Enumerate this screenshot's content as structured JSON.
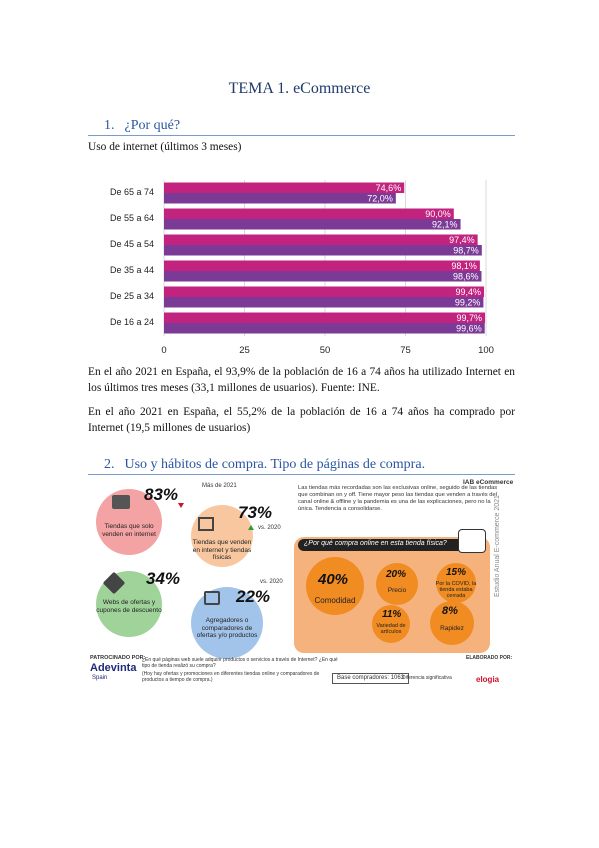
{
  "document": {
    "title": "TEMA 1. eCommerce",
    "section1": {
      "number": "1.",
      "heading": "¿Por qué?"
    },
    "chart_caption": "Uso de internet (últimos 3 meses)",
    "paragraph1": "En el año 2021 en España, el 93,9% de la población de 16 a 74 años ha utilizado Internet en los últimos tres meses (33,1 millones de usuarios). Fuente: INE.",
    "paragraph2": "En el año 2021 en España, el 55,2% de la población de 16 a 74 años ha comprado por Internet (19,5 millones de usuarios)",
    "section2": {
      "number": "2.",
      "heading": "Uso y hábitos de compra. Tipo de páginas de compra."
    }
  },
  "chart_data": {
    "type": "bar",
    "orientation": "horizontal",
    "categories": [
      "De 65 a 74",
      "De 55 a 64",
      "De 45 a 54",
      "De 35 a 44",
      "De 25 a 34",
      "De 16 a 24"
    ],
    "series": [
      {
        "values": [
          74.6,
          90.0,
          97.4,
          98.1,
          99.4,
          99.7
        ],
        "labels": [
          "74,6%",
          "90,0%",
          "97,4%",
          "98,1%",
          "99,4%",
          "99,7%"
        ],
        "color": "#c2237f"
      },
      {
        "values": [
          72.0,
          92.1,
          98.7,
          98.6,
          99.2,
          99.6
        ],
        "labels": [
          "72,0%",
          "92,1%",
          "98,7%",
          "98,6%",
          "99,2%",
          "99,6%"
        ],
        "color": "#7b3a96"
      }
    ],
    "xticks": [
      "0",
      "25",
      "50",
      "75",
      "100"
    ],
    "xlim": [
      0,
      100
    ],
    "grid": true
  },
  "infographic": {
    "brand": "IAB eCommerce",
    "side_text": "Estudio Anual E-commerce 2021",
    "intro": "Las tiendas más recordadas son las exclusivas online, seguido de las tiendas que combinan on y off. Tiene mayor peso las tiendas que venden a través del canal online & offline y la pandemia es una de las explicaciones, pero no la única. Tendencia a consolidarse.",
    "items": [
      {
        "pct": "83%",
        "label": "Tiendas que solo venden en internet",
        "note": "Más de 2021"
      },
      {
        "pct": "73%",
        "label": "Tiendas que venden en internet y tiendas físicas",
        "note": "vs. 2020"
      },
      {
        "pct": "34%",
        "label": "Webs de ofertas y cupones de descuento"
      },
      {
        "pct": "22%",
        "label": "Agregadores o comparadores de ofertas y/o productos",
        "note": "vs. 2020"
      }
    ],
    "reasons_title": "¿Por qué compra online en esta tienda física?",
    "reasons": [
      {
        "pct": "40%",
        "label": "Comodidad"
      },
      {
        "pct": "20%",
        "label": "Precio"
      },
      {
        "pct": "15%",
        "label": "Por la COVID, la tienda estaba cerrada"
      },
      {
        "pct": "11%",
        "label": "Variedad de artículos"
      },
      {
        "pct": "8%",
        "label": "Rapidez"
      }
    ],
    "sponsor_label": "PATROCINADO POR:",
    "sponsor": "Adevinta",
    "sponsor_sub": "Spain",
    "footnote1": "¿En qué páginas web suele adquirir productos o servicios a través de Internet? ¿En qué tipo de tienda realizó su compra?",
    "footnote2": "(Hoy hay ofertas y promociones en diferentes tiendas online y comparadores de productos a tiempo de compra.)",
    "base": "Base compradores: 1063",
    "legend_sig": "Diferencia significativa",
    "elaborated_label": "ELABORADO POR:",
    "elaborated": "elogia"
  }
}
